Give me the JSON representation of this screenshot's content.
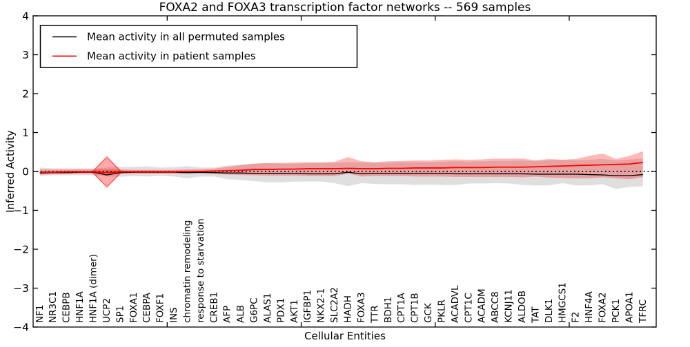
{
  "figure": {
    "title": "FOXA2 and FOXA3 transcription factor networks -- 569 samples",
    "xlabel": "Cellular Entities",
    "ylabel": "Inferred Activity"
  },
  "legend": {
    "items": [
      {
        "label": "Mean activity in all permuted samples",
        "color": "#000000"
      },
      {
        "label": "Mean activity in patient samples",
        "color": "#ff0000"
      }
    ]
  },
  "chart_data": {
    "type": "line",
    "title": "FOXA2 and FOXA3 transcription factor networks -- 569 samples",
    "xlabel": "Cellular Entities",
    "ylabel": "Inferred Activity",
    "ylim": [
      -4,
      4
    ],
    "yticks": [
      4,
      3,
      2,
      1,
      0,
      -1,
      -2,
      -3,
      -4
    ],
    "xtick_positions": [
      9.5,
      19.5,
      29.5,
      39.5
    ],
    "grid": false,
    "legend_position": "upper left",
    "zero_line": {
      "y": 0,
      "style": "dotted",
      "color": "#000000"
    },
    "categories": [
      "NF1",
      "NR3C1",
      "CEBPB",
      "HNF1A",
      "HNF1A (dimer)",
      "UCP2",
      "SP1",
      "FOXA1",
      "CEBPA",
      "FOXF1",
      "INS",
      "chromatin remodeling",
      "response to starvation",
      "CREB1",
      "AFP",
      "ALB",
      "G6PC",
      "ALAS1",
      "PDX1",
      "AKT1",
      "IGFBP1",
      "NKX2-1",
      "SLC2A2",
      "HADH",
      "FOXA3",
      "TTR",
      "BDH1",
      "CPT1A",
      "CPT1B",
      "GCK",
      "PKLR",
      "ACADVL",
      "CPT1C",
      "ACADM",
      "ABCC8",
      "KCNJ11",
      "ALDOB",
      "TAT",
      "DLK1",
      "HMGCS1",
      "F2",
      "HNF4A",
      "FOXA2",
      "PCK1",
      "APOA1",
      "TFRC"
    ],
    "series": [
      {
        "name": "Mean activity in all permuted samples",
        "color": "#000000",
        "band_color": "rgba(0,0,0,0.125)",
        "values": [
          -0.04,
          -0.03,
          -0.03,
          -0.02,
          -0.02,
          -0.09,
          -0.03,
          -0.02,
          -0.02,
          -0.02,
          -0.02,
          -0.03,
          -0.02,
          -0.03,
          -0.04,
          -0.04,
          -0.05,
          -0.05,
          -0.05,
          -0.05,
          -0.06,
          -0.06,
          -0.06,
          -0.02,
          -0.06,
          -0.05,
          -0.05,
          -0.05,
          -0.05,
          -0.05,
          -0.05,
          -0.06,
          -0.06,
          -0.06,
          -0.06,
          -0.06,
          -0.06,
          -0.07,
          -0.07,
          -0.07,
          -0.07,
          -0.08,
          -0.09,
          -0.11,
          -0.11,
          -0.08
        ],
        "band_upper": [
          0.1,
          0.08,
          0.08,
          0.08,
          0.08,
          0.1,
          0.12,
          0.12,
          0.13,
          0.1,
          0.11,
          0.14,
          0.1,
          0.1,
          0.15,
          0.18,
          0.2,
          0.21,
          0.2,
          0.2,
          0.21,
          0.21,
          0.22,
          0.24,
          0.23,
          0.22,
          0.23,
          0.24,
          0.24,
          0.24,
          0.25,
          0.26,
          0.25,
          0.26,
          0.27,
          0.27,
          0.28,
          0.26,
          0.29,
          0.3,
          0.29,
          0.3,
          0.32,
          0.28,
          0.31,
          0.33
        ],
        "band_lower": [
          -0.12,
          -0.1,
          -0.1,
          -0.1,
          -0.1,
          -0.13,
          -0.14,
          -0.12,
          -0.13,
          -0.11,
          -0.13,
          -0.18,
          -0.13,
          -0.13,
          -0.2,
          -0.22,
          -0.25,
          -0.28,
          -0.28,
          -0.26,
          -0.26,
          -0.26,
          -0.3,
          -0.38,
          -0.3,
          -0.32,
          -0.33,
          -0.33,
          -0.35,
          -0.34,
          -0.35,
          -0.35,
          -0.31,
          -0.31,
          -0.3,
          -0.31,
          -0.35,
          -0.36,
          -0.36,
          -0.3,
          -0.36,
          -0.36,
          -0.33,
          -0.45,
          -0.4,
          -0.38
        ]
      },
      {
        "name": "Mean activity in patient samples",
        "color": "#ff0000",
        "band_color": "rgba(255,0,0,0.28)",
        "values": [
          -0.02,
          -0.02,
          -0.01,
          -0.01,
          -0.01,
          -0.03,
          -0.01,
          -0.01,
          -0.01,
          -0.01,
          -0.01,
          0.0,
          0.0,
          0.01,
          0.02,
          0.03,
          0.05,
          0.05,
          0.06,
          0.06,
          0.07,
          0.07,
          0.07,
          0.08,
          0.07,
          0.07,
          0.08,
          0.08,
          0.09,
          0.09,
          0.09,
          0.1,
          0.1,
          0.1,
          0.11,
          0.11,
          0.11,
          0.12,
          0.13,
          0.14,
          0.15,
          0.16,
          0.17,
          0.18,
          0.19,
          0.23
        ],
        "band_upper": [
          0.05,
          0.05,
          0.05,
          0.05,
          0.05,
          0.05,
          0.05,
          0.04,
          0.04,
          0.04,
          0.04,
          0.05,
          0.05,
          0.07,
          0.12,
          0.16,
          0.2,
          0.22,
          0.22,
          0.23,
          0.24,
          0.24,
          0.25,
          0.37,
          0.26,
          0.24,
          0.26,
          0.27,
          0.28,
          0.28,
          0.3,
          0.31,
          0.3,
          0.31,
          0.33,
          0.33,
          0.33,
          0.29,
          0.32,
          0.3,
          0.32,
          0.4,
          0.46,
          0.32,
          0.4,
          0.52
        ],
        "band_lower": [
          -0.08,
          -0.07,
          -0.07,
          -0.06,
          -0.06,
          -0.06,
          -0.06,
          -0.06,
          -0.06,
          -0.06,
          -0.06,
          -0.06,
          -0.06,
          -0.07,
          -0.08,
          -0.09,
          -0.1,
          -0.11,
          -0.11,
          -0.11,
          -0.12,
          -0.12,
          -0.12,
          -0.06,
          -0.13,
          -0.12,
          -0.12,
          -0.12,
          -0.13,
          -0.13,
          -0.13,
          -0.14,
          -0.14,
          -0.14,
          -0.14,
          -0.14,
          -0.15,
          -0.13,
          -0.16,
          -0.17,
          -0.18,
          -0.18,
          -0.15,
          -0.18,
          -0.2,
          -0.15
        ]
      }
    ],
    "significance_marker": {
      "shape": "diamond",
      "category": "UCP2",
      "index": 5,
      "y_top": 0.37,
      "y_bottom": -0.4,
      "fill": "rgba(255,0,0,0.33)",
      "edge": "rgba(255,0,0,0.55)"
    }
  }
}
